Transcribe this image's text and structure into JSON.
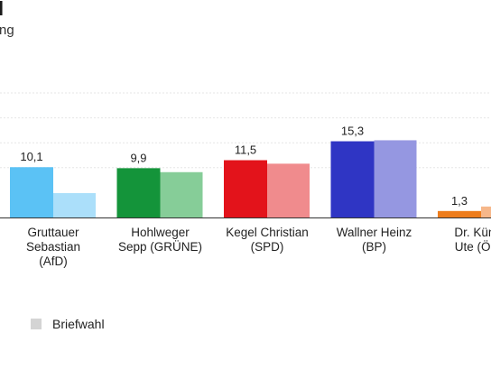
{
  "header": {
    "title": "l",
    "subtitle": "ng"
  },
  "chart_data": {
    "type": "bar",
    "ylim": [
      0,
      30
    ],
    "grid": true,
    "legend_position": "bottom-left",
    "categories": [
      [
        "Gruttauer",
        "Sebastian",
        "(AfD)"
      ],
      [
        "Hohlweger",
        "Sepp (GRÜNE)"
      ],
      [
        "Kegel Christian",
        "(SPD)"
      ],
      [
        "Wallner Heinz",
        "(BP)"
      ],
      [
        "Dr. Künke",
        "Ute (ÖDP"
      ]
    ],
    "series": [
      {
        "values": [
          10.1,
          9.9,
          11.5,
          15.3,
          1.3
        ],
        "value_labels": [
          "10,1",
          "9,9",
          "11,5",
          "15,3",
          "1,3"
        ],
        "colors": [
          "#5bc2f5",
          "#14943a",
          "#e3131b",
          "#2f35c4",
          "#ee7d1c"
        ]
      },
      {
        "name": "Briefwahl",
        "values": [
          4.9,
          9.1,
          10.8,
          15.5,
          2.2
        ],
        "colors": [
          "#abdffa",
          "#86cd98",
          "#f08b8d",
          "#9597e1",
          "#f6b78a"
        ]
      }
    ]
  }
}
